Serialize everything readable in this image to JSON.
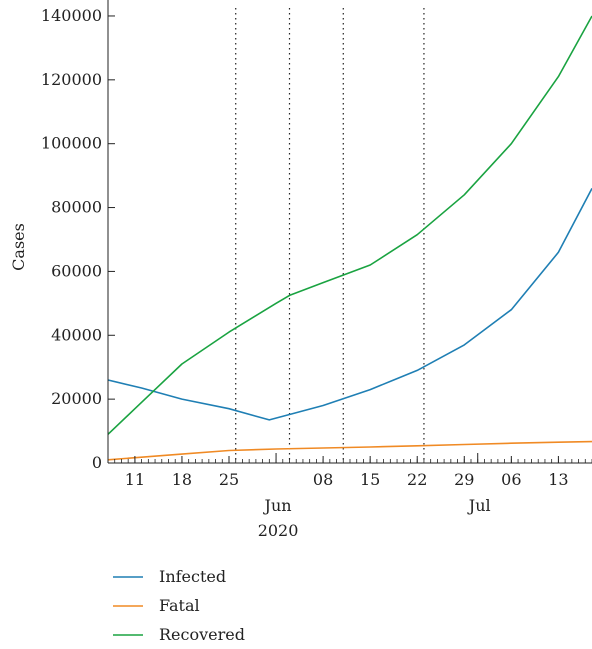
{
  "chart_data": {
    "type": "line",
    "ylabel": "Cases",
    "xlabel": "",
    "ylim": [
      0,
      145000
    ],
    "xlim": [
      "2020-05-07",
      "2020-07-18"
    ],
    "y_ticks": [
      0,
      20000,
      40000,
      60000,
      80000,
      100000,
      120000,
      140000
    ],
    "x_day_ticks": [
      {
        "date": "2020-05-11",
        "label": "11"
      },
      {
        "date": "2020-05-18",
        "label": "18"
      },
      {
        "date": "2020-05-25",
        "label": "25"
      },
      {
        "date": "2020-06-08",
        "label": "08"
      },
      {
        "date": "2020-06-15",
        "label": "15"
      },
      {
        "date": "2020-06-22",
        "label": "22"
      },
      {
        "date": "2020-06-29",
        "label": "29"
      },
      {
        "date": "2020-07-06",
        "label": "06"
      },
      {
        "date": "2020-07-13",
        "label": "13"
      }
    ],
    "x_month_labels": [
      {
        "date": "2020-06-01",
        "label": "Jun"
      },
      {
        "date": "2020-07-01",
        "label": "Jul"
      }
    ],
    "x_year_label": {
      "date": "2020-06-01",
      "label": "2020"
    },
    "vlines": [
      "2020-05-26",
      "2020-06-03",
      "2020-06-11",
      "2020-06-23"
    ],
    "grid": false,
    "legend_position": "bottom",
    "series": [
      {
        "name": "Infected",
        "color": "#1f7fb4",
        "points": [
          [
            "2020-05-07",
            26000
          ],
          [
            "2020-05-12",
            23500
          ],
          [
            "2020-05-18",
            20000
          ],
          [
            "2020-05-25",
            17000
          ],
          [
            "2020-05-31",
            13500
          ],
          [
            "2020-06-03",
            15200
          ],
          [
            "2020-06-08",
            18000
          ],
          [
            "2020-06-15",
            23000
          ],
          [
            "2020-06-22",
            29000
          ],
          [
            "2020-06-29",
            37000
          ],
          [
            "2020-07-06",
            48000
          ],
          [
            "2020-07-13",
            66000
          ],
          [
            "2020-07-18",
            86000
          ]
        ]
      },
      {
        "name": "Fatal",
        "color": "#f08a24",
        "points": [
          [
            "2020-05-07",
            1000
          ],
          [
            "2020-05-18",
            2800
          ],
          [
            "2020-05-25",
            3900
          ],
          [
            "2020-06-01",
            4400
          ],
          [
            "2020-06-08",
            4700
          ],
          [
            "2020-06-15",
            5000
          ],
          [
            "2020-06-22",
            5400
          ],
          [
            "2020-06-29",
            5800
          ],
          [
            "2020-07-06",
            6200
          ],
          [
            "2020-07-13",
            6500
          ],
          [
            "2020-07-18",
            6700
          ]
        ]
      },
      {
        "name": "Recovered",
        "color": "#1aa341",
        "points": [
          [
            "2020-05-07",
            9000
          ],
          [
            "2020-05-11",
            17000
          ],
          [
            "2020-05-18",
            31000
          ],
          [
            "2020-05-25",
            41000
          ],
          [
            "2020-06-01",
            50000
          ],
          [
            "2020-06-03",
            52500
          ],
          [
            "2020-06-08",
            56500
          ],
          [
            "2020-06-15",
            62000
          ],
          [
            "2020-06-22",
            71500
          ],
          [
            "2020-06-29",
            84000
          ],
          [
            "2020-07-06",
            100000
          ],
          [
            "2020-07-13",
            121000
          ],
          [
            "2020-07-18",
            140000
          ]
        ]
      }
    ]
  }
}
